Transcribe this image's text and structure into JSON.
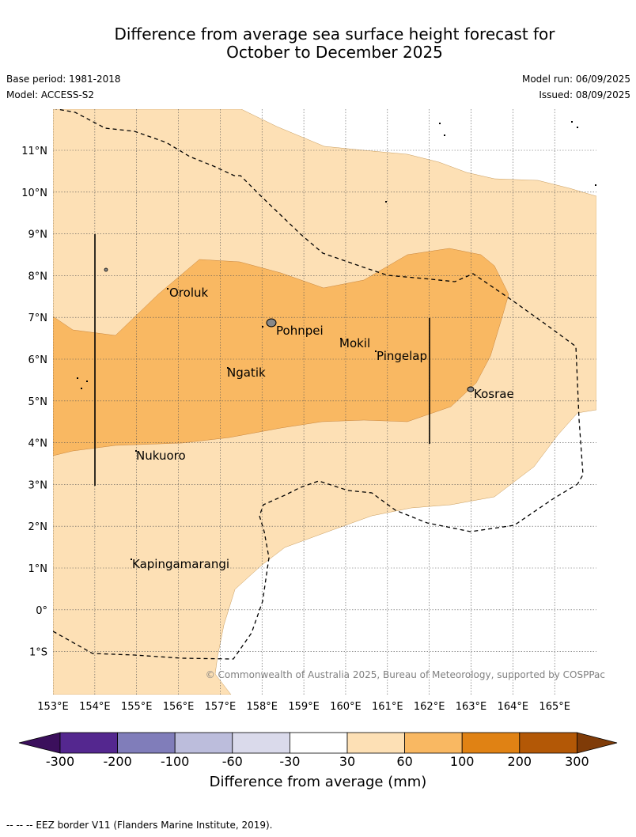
{
  "title": {
    "line1": "Difference from average sea surface height forecast for",
    "line2": "October to December 2025"
  },
  "meta": {
    "base_period": "Base period: 1981-2018",
    "model": "Model: ACCESS-S2",
    "model_run": "Model run: 06/09/2025",
    "issued": "Issued: 08/09/2025"
  },
  "map": {
    "lat_labels": [
      "11°N",
      "10°N",
      "9°N",
      "8°N",
      "7°N",
      "6°N",
      "5°N",
      "4°N",
      "3°N",
      "2°N",
      "1°N",
      "0°",
      "1°S"
    ],
    "lon_labels": [
      "153°E",
      "154°E",
      "155°E",
      "156°E",
      "157°E",
      "158°E",
      "159°E",
      "160°E",
      "161°E",
      "162°E",
      "163°E",
      "164°E",
      "165°E"
    ],
    "places": [
      "Oroluk",
      "Pohnpei",
      "Mokil",
      "Pingelap",
      "Ngatik",
      "Kosrae",
      "Nukuoro",
      "Kapingamarangi"
    ],
    "copyright": "© Commonwealth of Australia 2025, Bureau of Meteorology, supported by COSPPac",
    "colors": {
      "band_30_60": "#fde0b5",
      "band_60_100": "#f9b862",
      "ocean_neutral": "#ffffff",
      "grid": "#555555",
      "island_fill": "#888888"
    }
  },
  "colorbar": {
    "ticks": [
      "-300",
      "-200",
      "-100",
      "-60",
      "-30",
      "30",
      "60",
      "100",
      "200",
      "300"
    ],
    "colors": [
      "#3b0f5c",
      "#54278f",
      "#807dba",
      "#bcbddc",
      "#dadaeb",
      "#ffffff",
      "#fde0b5",
      "#f9b862",
      "#e08214",
      "#b35806",
      "#7f3b08"
    ],
    "label": "Difference from average (mm)"
  },
  "footnote": "--  --  -- EEZ border V11 (Flanders Marine Institute, 2019)."
}
